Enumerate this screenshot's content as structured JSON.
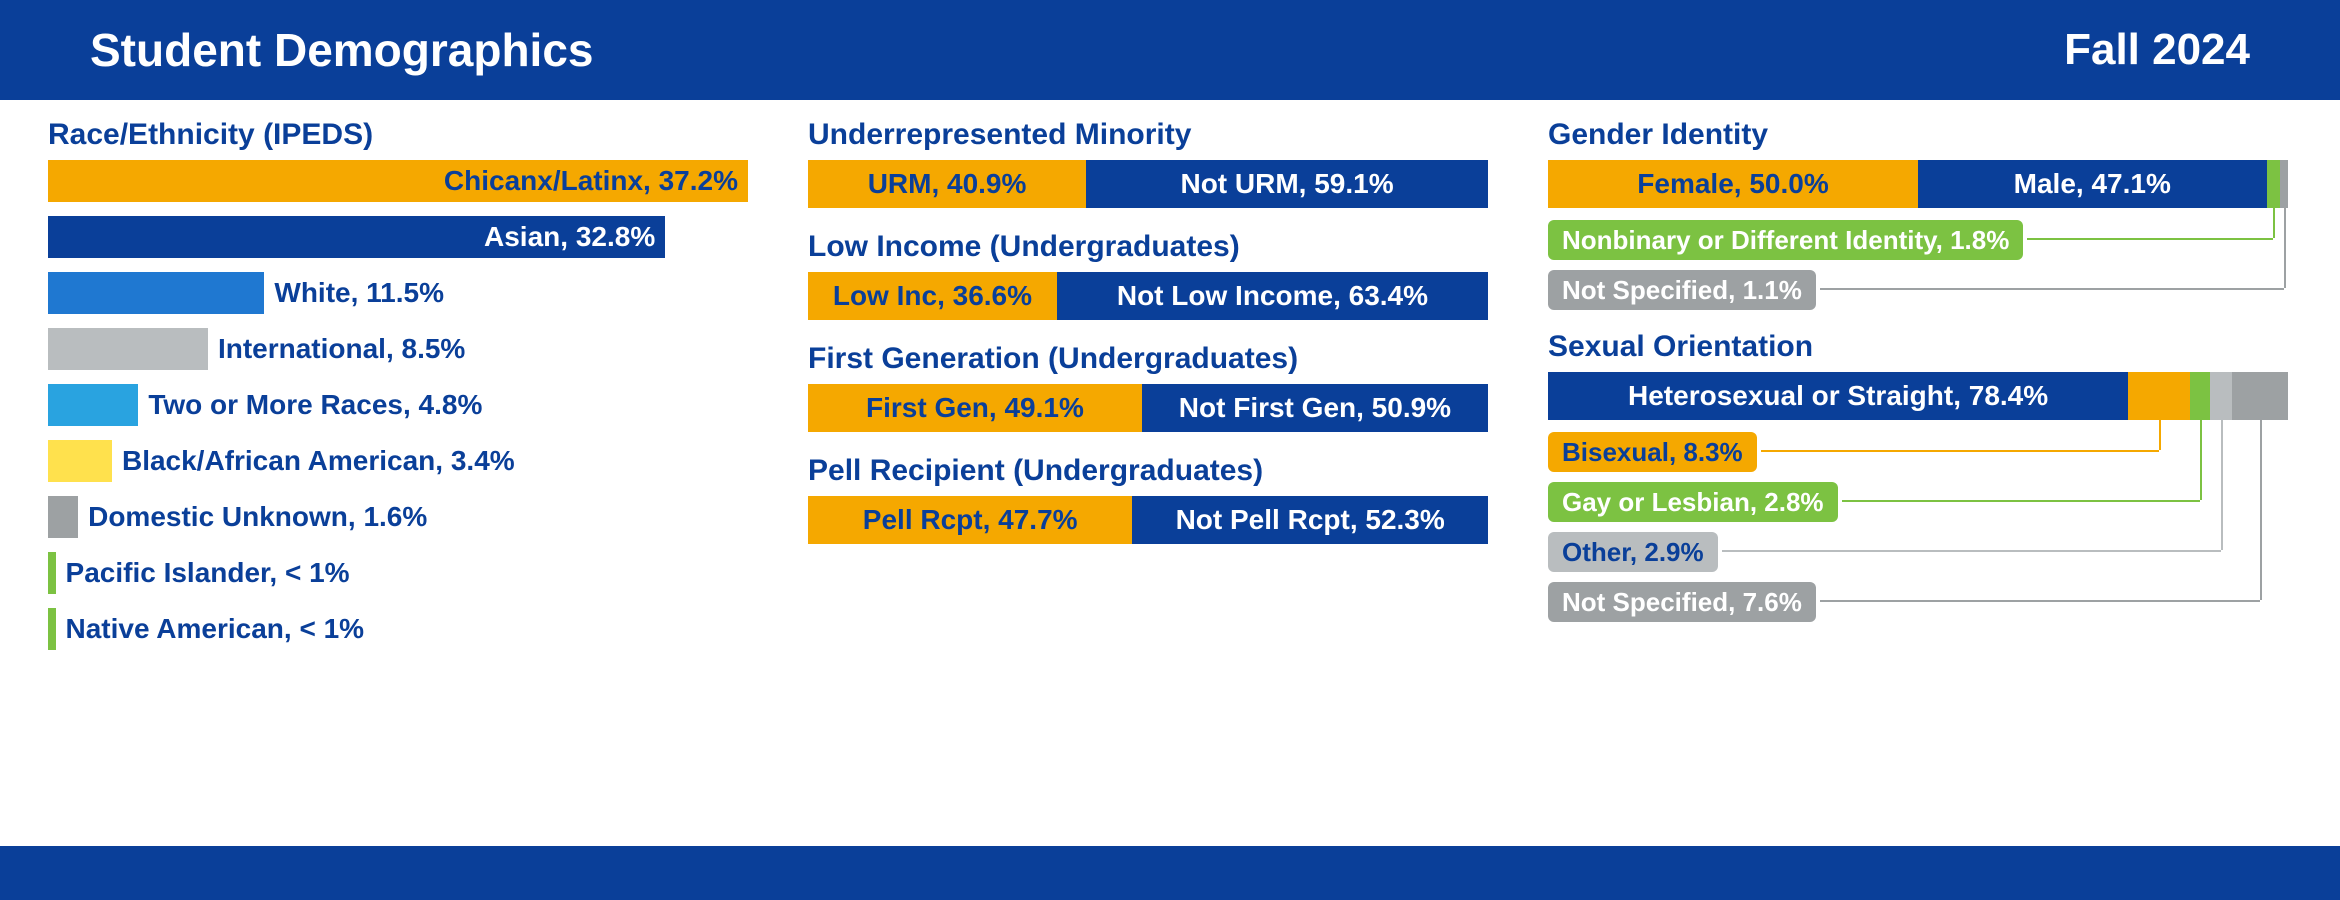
{
  "header": {
    "title": "Student Demographics",
    "term": "Fall 2024"
  },
  "colors": {
    "gold": "#f5a800",
    "navy": "#0a3f99",
    "blue": "#1f78d1",
    "ltblue": "#29a3e0",
    "gray": "#b9bdbf",
    "dkgray": "#9da1a3",
    "yellow": "#ffe14d",
    "green": "#7cc242",
    "white": "#ffffff"
  },
  "race": {
    "title": "Race/Ethnicity (IPEDS)",
    "max_pct": 37.2,
    "bars": [
      {
        "label": "Chicanx/Latinx, 37.2%",
        "pct": 37.2,
        "color": "#f5a800",
        "label_mode": "inside-dark"
      },
      {
        "label": "Asian, 32.8%",
        "pct": 32.8,
        "color": "#0a3f99",
        "label_mode": "inside-light"
      },
      {
        "label": "White, 11.5%",
        "pct": 11.5,
        "color": "#1f78d1",
        "label_mode": "after"
      },
      {
        "label": "International, 8.5%",
        "pct": 8.5,
        "color": "#b9bdbf",
        "label_mode": "after"
      },
      {
        "label": "Two or More Races, 4.8%",
        "pct": 4.8,
        "color": "#29a3e0",
        "label_mode": "after"
      },
      {
        "label": "Black/African American, 3.4%",
        "pct": 3.4,
        "color": "#ffe14d",
        "label_mode": "after"
      },
      {
        "label": "Domestic Unknown, 1.6%",
        "pct": 1.6,
        "color": "#9da1a3",
        "label_mode": "after"
      },
      {
        "label": "Pacific Islander, < 1%",
        "pct": 0.4,
        "color": "#7cc242",
        "label_mode": "after"
      },
      {
        "label": "Native American, < 1%",
        "pct": 0.4,
        "color": "#7cc242",
        "label_mode": "after"
      }
    ]
  },
  "splits": [
    {
      "title": "Underrepresented Minority",
      "left": {
        "label": "URM, 40.9%",
        "pct": 40.9,
        "bg": "#f5a800",
        "fg": "#0a3f99"
      },
      "right": {
        "label": "Not URM, 59.1%",
        "pct": 59.1,
        "bg": "#0a3f99",
        "fg": "#ffffff"
      }
    },
    {
      "title": "Low Income (Undergraduates)",
      "left": {
        "label": "Low Inc, 36.6%",
        "pct": 36.6,
        "bg": "#f5a800",
        "fg": "#0a3f99"
      },
      "right": {
        "label": "Not Low Income, 63.4%",
        "pct": 63.4,
        "bg": "#0a3f99",
        "fg": "#ffffff"
      }
    },
    {
      "title": "First Generation (Undergraduates)",
      "left": {
        "label": "First Gen, 49.1%",
        "pct": 49.1,
        "bg": "#f5a800",
        "fg": "#0a3f99"
      },
      "right": {
        "label": "Not First Gen, 50.9%",
        "pct": 50.9,
        "bg": "#0a3f99",
        "fg": "#ffffff"
      }
    },
    {
      "title": "Pell Recipient (Undergraduates)",
      "left": {
        "label": "Pell Rcpt, 47.7%",
        "pct": 47.7,
        "bg": "#f5a800",
        "fg": "#0a3f99"
      },
      "right": {
        "label": "Not Pell Rcpt, 52.3%",
        "pct": 52.3,
        "bg": "#0a3f99",
        "fg": "#ffffff"
      }
    }
  ],
  "gender": {
    "title": "Gender Identity",
    "segments": [
      {
        "label": "Female, 50.0%",
        "pct": 50.0,
        "bg": "#f5a800",
        "fg": "#0a3f99",
        "show_label": true
      },
      {
        "label": "Male, 47.1%",
        "pct": 47.1,
        "bg": "#0a3f99",
        "fg": "#ffffff",
        "show_label": true
      },
      {
        "label": "",
        "pct": 1.8,
        "bg": "#7cc242",
        "fg": "#ffffff",
        "show_label": false
      },
      {
        "label": "",
        "pct": 1.1,
        "bg": "#9da1a3",
        "fg": "#ffffff",
        "show_label": false
      }
    ],
    "callouts": [
      {
        "label": "Nonbinary or Different Identity, 1.8%",
        "pill_bg": "#7cc242",
        "pill_fg": "#ffffff",
        "line_color": "#7cc242",
        "target_pct": 98.0
      },
      {
        "label": "Not Specified, 1.1%",
        "pill_bg": "#9da1a3",
        "pill_fg": "#ffffff",
        "line_color": "#9da1a3",
        "target_pct": 99.4
      }
    ]
  },
  "orientation": {
    "title": "Sexual Orientation",
    "segments": [
      {
        "label": "Heterosexual or Straight, 78.4%",
        "pct": 78.4,
        "bg": "#0a3f99",
        "fg": "#ffffff",
        "show_label": true
      },
      {
        "label": "",
        "pct": 8.3,
        "bg": "#f5a800",
        "fg": "#0a3f99",
        "show_label": false
      },
      {
        "label": "",
        "pct": 2.8,
        "bg": "#7cc242",
        "fg": "#ffffff",
        "show_label": false
      },
      {
        "label": "",
        "pct": 2.9,
        "bg": "#b9bdbf",
        "fg": "#0a3f99",
        "show_label": false
      },
      {
        "label": "",
        "pct": 7.6,
        "bg": "#9da1a3",
        "fg": "#ffffff",
        "show_label": false
      }
    ],
    "callouts": [
      {
        "label": "Bisexual, 8.3%",
        "pill_bg": "#f5a800",
        "pill_fg": "#0a3f99",
        "line_color": "#f5a800",
        "target_pct": 82.5
      },
      {
        "label": "Gay or Lesbian, 2.8%",
        "pill_bg": "#7cc242",
        "pill_fg": "#ffffff",
        "line_color": "#7cc242",
        "target_pct": 88.1
      },
      {
        "label": "Other, 2.9%",
        "pill_bg": "#b9bdbf",
        "pill_fg": "#0a3f99",
        "line_color": "#b9bdbf",
        "target_pct": 91.0
      },
      {
        "label": "Not Specified, 7.6%",
        "pill_bg": "#9da1a3",
        "pill_fg": "#ffffff",
        "line_color": "#9da1a3",
        "target_pct": 96.2
      }
    ]
  }
}
